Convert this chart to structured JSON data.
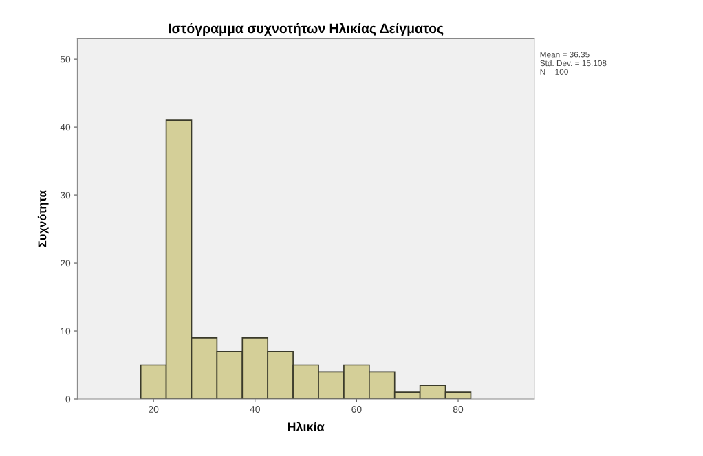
{
  "chart_data": {
    "type": "histogram",
    "title": "Ιστόγραμμα συχνοτήτων Ηλικίας Δείγματος",
    "xlabel": "Ηλικία",
    "ylabel": "Συχνότητα",
    "bins": [
      17.5,
      22.5,
      27.5,
      32.5,
      37.5,
      42.5,
      47.5,
      52.5,
      57.5,
      62.5,
      67.5,
      72.5,
      77.5,
      82.5
    ],
    "values": [
      5,
      41,
      9,
      7,
      9,
      7,
      5,
      4,
      5,
      4,
      1,
      2,
      1
    ],
    "color": "#d4cf98",
    "xlim": [
      5,
      95
    ],
    "xticks": [
      20,
      40,
      60,
      80
    ],
    "ylim": [
      0,
      53
    ],
    "yticks": [
      0,
      10,
      20,
      30,
      40,
      50
    ],
    "grid": false,
    "annotations": [
      "Mean = 36.35\nStd. Dev. = 15.108\nN = 100"
    ]
  }
}
